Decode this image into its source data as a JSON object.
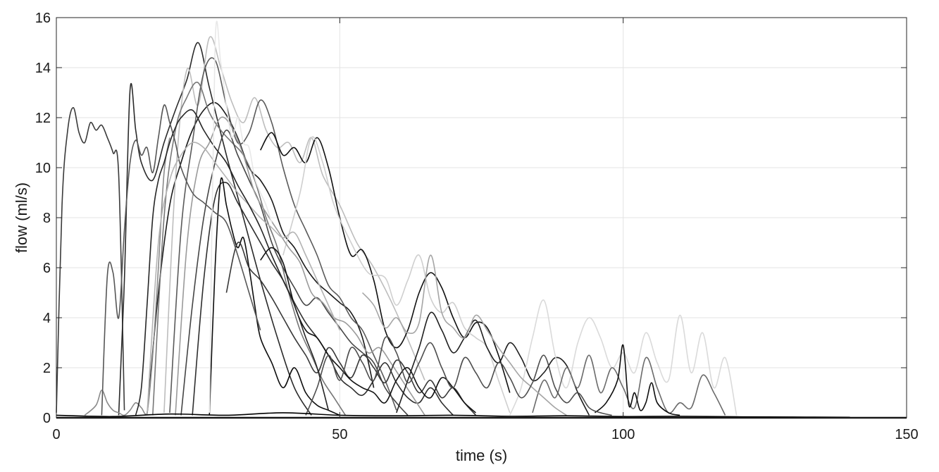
{
  "chart_data": {
    "type": "line",
    "title": "",
    "xlabel": "time (s)",
    "ylabel": "flow (ml/s)",
    "xlim": [
      0,
      150
    ],
    "ylim": [
      0,
      16
    ],
    "xticks": [
      0,
      50,
      100,
      150
    ],
    "yticks": [
      0,
      2,
      4,
      6,
      8,
      10,
      12,
      14,
      16
    ],
    "grid": true,
    "legend": "none",
    "colors": {
      "axis": "#262626",
      "grid": "#e3e3e3",
      "series_dark": "#0a0a0a",
      "series_light": "#d9d9d9"
    },
    "series_description_note": "",
    "series": [
      {
        "color": "#3a3a3a",
        "x": [
          0,
          1,
          2,
          3,
          4,
          5,
          6,
          7,
          8,
          9,
          10,
          11,
          12
        ],
        "y": [
          0.2,
          8.5,
          11.5,
          12.4,
          11.4,
          11.0,
          11.8,
          11.5,
          11.7,
          11.2,
          10.6,
          9.7,
          0.3
        ]
      },
      {
        "color": "#2a2a2a",
        "x": [
          11,
          12,
          13,
          14,
          15,
          17,
          19,
          21,
          23,
          25,
          27,
          30,
          33,
          36,
          39,
          42,
          45
        ],
        "y": [
          0.1,
          5.5,
          13.1,
          11.5,
          10.2,
          9.5,
          11.0,
          12.3,
          13.5,
          15.0,
          13.2,
          10.5,
          8.0,
          5.5,
          3.2,
          1.2,
          0.1
        ]
      },
      {
        "color": "#1a1a1a",
        "x": [
          16,
          18,
          20,
          22,
          24,
          26,
          28,
          30,
          32,
          34,
          36,
          38,
          40,
          42,
          44,
          46,
          48,
          50,
          52,
          54,
          56
        ],
        "y": [
          0.1,
          5.0,
          8.5,
          10.2,
          11.5,
          12.3,
          12.6,
          12.1,
          11.2,
          10.0,
          9.5,
          8.7,
          7.4,
          6.8,
          6.0,
          5.4,
          5.0,
          4.6,
          4.2,
          3.2,
          1.2
        ]
      },
      {
        "color": "#bdbdbd",
        "x": [
          19,
          21,
          23,
          25,
          27,
          29,
          31,
          33,
          35,
          37,
          39,
          41,
          43,
          45,
          47,
          50,
          53,
          56,
          60,
          65
        ],
        "y": [
          0.2,
          9.5,
          13.9,
          12.5,
          15.2,
          14.0,
          12.6,
          11.8,
          12.8,
          11.5,
          10.8,
          11.0,
          10.2,
          11.2,
          9.7,
          8.5,
          7.0,
          6.0,
          4.2,
          1.5
        ]
      },
      {
        "color": "#5a5a5a",
        "x": [
          20,
          22,
          24,
          26,
          28,
          30,
          32,
          34,
          36,
          38,
          40,
          42,
          44,
          46,
          48,
          50,
          52,
          54,
          56,
          58,
          60
        ],
        "y": [
          0.2,
          7.5,
          11.0,
          13.8,
          14.3,
          12.5,
          11.0,
          11.4,
          12.7,
          11.8,
          10.0,
          8.5,
          7.5,
          6.5,
          5.3,
          4.8,
          4.0,
          3.5,
          2.5,
          1.5,
          0.3
        ]
      },
      {
        "color": "#111111",
        "x": [
          36,
          38,
          40,
          42,
          44,
          46,
          48,
          50,
          52,
          54,
          56,
          58,
          60,
          62,
          64,
          66,
          68,
          70,
          72,
          74,
          76,
          78,
          80
        ],
        "y": [
          10.7,
          11.4,
          10.5,
          10.8,
          10.2,
          11.2,
          10.0,
          8.0,
          6.5,
          6.7,
          5.5,
          3.5,
          2.8,
          3.5,
          5.0,
          5.8,
          5.2,
          4.0,
          3.2,
          3.8,
          3.6,
          2.5,
          1.0
        ]
      },
      {
        "color": "#cfcfcf",
        "x": [
          40,
          43,
          45,
          47,
          49,
          52,
          55,
          58,
          60,
          62,
          64,
          66,
          68,
          70,
          72,
          74,
          76,
          78,
          80
        ],
        "y": [
          6.5,
          9.0,
          11.2,
          10.2,
          8.5,
          7.0,
          5.8,
          5.6,
          4.5,
          5.5,
          6.5,
          4.8,
          4.2,
          4.6,
          3.6,
          3.2,
          2.8,
          1.5,
          0.2
        ]
      },
      {
        "color": "#2f2f2f",
        "x": [
          24,
          26,
          28,
          30,
          32,
          34,
          36,
          38,
          40,
          42,
          44,
          46,
          48,
          50,
          52,
          54,
          56,
          58,
          60,
          62,
          64,
          66,
          68,
          70
        ],
        "y": [
          0.1,
          5.5,
          8.8,
          9.4,
          8.6,
          7.8,
          7.0,
          6.2,
          5.5,
          4.6,
          3.8,
          3.2,
          2.5,
          1.6,
          1.2,
          0.9,
          1.5,
          2.2,
          1.4,
          0.8,
          0.6,
          1.2,
          0.6,
          0.1
        ]
      },
      {
        "color": "#777777",
        "x": [
          17,
          19,
          21,
          23,
          25,
          27,
          29,
          31,
          33,
          35,
          37,
          39,
          41,
          43,
          45,
          47,
          49,
          51
        ],
        "y": [
          0.1,
          8.0,
          11.5,
          12.8,
          13.4,
          12.2,
          11.5,
          11.0,
          10.5,
          9.5,
          8.0,
          6.8,
          5.0,
          3.5,
          2.5,
          1.5,
          0.8,
          0.1
        ]
      },
      {
        "color": "#0d0d0d",
        "x": [
          27,
          28,
          29,
          30,
          31,
          32,
          33,
          34,
          35,
          36,
          38,
          40,
          42,
          44,
          46,
          48,
          50
        ],
        "y": [
          0.1,
          6.0,
          9.5,
          8.5,
          7.5,
          6.8,
          7.2,
          6.0,
          4.5,
          3.2,
          2.2,
          1.2,
          2.0,
          1.0,
          0.5,
          0.3,
          0.1
        ]
      },
      {
        "color": "#454545",
        "x": [
          22,
          24,
          26,
          28,
          30,
          32,
          34,
          36,
          38,
          40,
          42,
          44,
          46,
          48,
          50,
          52,
          54,
          56,
          58,
          60,
          62
        ],
        "y": [
          0.1,
          4.5,
          8.0,
          10.2,
          11.5,
          10.5,
          9.5,
          8.5,
          7.0,
          6.0,
          5.2,
          4.5,
          4.8,
          4.2,
          3.6,
          3.0,
          2.6,
          2.2,
          1.2,
          0.6,
          0.1
        ]
      },
      {
        "color": "#9a9a9a",
        "x": [
          21,
          23,
          25,
          27,
          29,
          31,
          33,
          35,
          37,
          39,
          41,
          43,
          45,
          47,
          49,
          51,
          53,
          55,
          57,
          59,
          61,
          63,
          65
        ],
        "y": [
          0.1,
          6.8,
          10.0,
          11.0,
          12.0,
          11.6,
          10.5,
          9.0,
          8.2,
          7.5,
          6.8,
          6.2,
          5.0,
          4.6,
          4.0,
          3.8,
          3.3,
          2.6,
          2.8,
          2.2,
          1.5,
          0.8,
          0.1
        ]
      },
      {
        "color": "#1f1f1f",
        "x": [
          60,
          62,
          64,
          66,
          68,
          70,
          72,
          74,
          76,
          78,
          80,
          82,
          84,
          86,
          88,
          90,
          92,
          94
        ],
        "y": [
          0.2,
          1.5,
          2.8,
          4.2,
          3.5,
          2.6,
          3.2,
          3.9,
          2.8,
          2.2,
          3.0,
          2.4,
          1.5,
          1.8,
          2.4,
          2.1,
          1.0,
          0.1
        ]
      },
      {
        "color": "#dadada",
        "x": [
          80,
          82,
          84,
          86,
          88,
          90,
          92,
          94,
          96,
          98,
          100,
          102,
          104,
          106,
          108,
          110,
          112,
          114,
          116,
          118,
          120
        ],
        "y": [
          0.1,
          1.2,
          3.2,
          4.7,
          2.5,
          1.2,
          3.0,
          4.0,
          3.2,
          2.0,
          2.6,
          1.8,
          3.4,
          2.2,
          1.5,
          4.1,
          1.8,
          3.4,
          1.2,
          2.4,
          0.1
        ]
      },
      {
        "color": "#6b6b6b",
        "x": [
          84,
          86,
          88,
          90,
          92,
          94,
          96,
          98,
          100,
          102,
          104,
          106,
          108,
          110,
          112,
          114,
          116,
          118
        ],
        "y": [
          0.2,
          1.5,
          0.8,
          2.0,
          1.2,
          2.5,
          1.0,
          2.0,
          1.2,
          0.4,
          2.4,
          1.2,
          0.2,
          0.6,
          0.4,
          1.7,
          1.0,
          0.1
        ]
      },
      {
        "color": "#0f0f0f",
        "x": [
          95,
          97,
          99,
          100,
          101,
          102,
          103,
          104,
          105,
          106,
          108,
          110
        ],
        "y": [
          0.2,
          0.6,
          1.5,
          2.9,
          0.5,
          1.0,
          0.3,
          0.6,
          1.4,
          0.6,
          0.2,
          0.1
        ]
      },
      {
        "color": "#383838",
        "x": [
          30,
          32,
          34,
          36,
          38,
          40,
          42,
          44,
          46,
          48,
          50,
          52,
          54,
          56,
          58,
          60,
          62,
          64,
          66,
          68,
          70,
          72,
          74
        ],
        "y": [
          5.0,
          7.0,
          6.0,
          5.5,
          4.8,
          4.0,
          3.2,
          2.5,
          1.8,
          2.8,
          2.2,
          1.6,
          2.5,
          2.0,
          1.4,
          2.3,
          1.8,
          1.0,
          1.5,
          0.8,
          1.2,
          0.6,
          0.1
        ]
      },
      {
        "color": "#8a8a8a",
        "x": [
          5,
          7,
          8,
          9,
          10,
          11,
          12,
          13,
          14,
          15,
          16,
          17,
          18,
          19,
          20
        ],
        "y": [
          0.1,
          0.5,
          1.1,
          0.6,
          0.3,
          0.2,
          0.1,
          0.3,
          0.6,
          0.4,
          0.2,
          2.5,
          6.0,
          9.8,
          11.2
        ]
      },
      {
        "color": "#565656",
        "x": [
          8,
          9,
          10,
          11,
          12,
          13,
          14,
          15,
          16,
          17,
          18,
          19,
          20,
          21,
          22,
          24,
          26,
          28,
          30,
          32,
          34,
          36
        ],
        "y": [
          0.1,
          5.7,
          5.8,
          4.0,
          7.5,
          10.2,
          11.1,
          10.5,
          10.8,
          9.8,
          11.2,
          12.5,
          11.8,
          11.0,
          10.0,
          9.0,
          8.6,
          8.2,
          7.8,
          6.5,
          5.0,
          3.5
        ]
      },
      {
        "color": "#121212",
        "x": [
          36,
          38,
          40,
          42,
          44,
          46,
          48,
          50,
          52,
          54,
          56,
          58,
          60,
          62,
          64,
          66,
          68,
          70,
          72,
          74
        ],
        "y": [
          6.3,
          6.8,
          6.2,
          4.5,
          3.5,
          3.2,
          2.5,
          2.0,
          1.5,
          1.2,
          1.0,
          0.6,
          1.5,
          2.0,
          1.2,
          0.8,
          1.6,
          1.2,
          0.6,
          0.2
        ]
      },
      {
        "color": "#a5a5a5",
        "x": [
          54,
          56,
          58,
          60,
          62,
          64,
          66,
          68,
          70,
          72,
          74,
          76,
          78,
          80,
          82,
          84,
          86,
          88,
          90
        ],
        "y": [
          5.0,
          4.5,
          3.6,
          4.0,
          3.4,
          3.8,
          6.5,
          4.2,
          3.6,
          3.2,
          4.1,
          3.5,
          2.8,
          2.2,
          1.6,
          1.2,
          0.8,
          0.4,
          0.1
        ]
      },
      {
        "color": "#4d4d4d",
        "x": [
          44,
          46,
          48,
          50,
          52,
          54,
          56,
          58,
          60,
          62,
          64,
          66,
          68,
          70,
          72,
          74,
          76,
          78,
          80,
          82,
          84,
          86,
          88,
          90,
          92,
          94,
          96,
          98
        ],
        "y": [
          0.1,
          1.2,
          2.5,
          1.5,
          2.8,
          2.2,
          1.5,
          3.2,
          2.6,
          1.4,
          2.2,
          3.0,
          2.0,
          1.2,
          2.4,
          1.8,
          1.2,
          2.2,
          1.6,
          0.8,
          1.4,
          2.5,
          1.2,
          0.6,
          1.0,
          0.4,
          0.2,
          0.1
        ]
      },
      {
        "color": "#b3b3b3",
        "x": [
          16,
          18,
          20,
          22,
          24,
          26,
          28,
          30,
          32,
          34,
          36,
          38,
          40,
          42,
          44,
          46,
          48,
          50
        ],
        "y": [
          0.1,
          7.0,
          9.5,
          10.5,
          11.0,
          10.8,
          10.2,
          9.6,
          9.0,
          8.5,
          8.0,
          7.6,
          7.2,
          7.4,
          6.5,
          5.5,
          4.5,
          3.5
        ]
      },
      {
        "color": "#262626",
        "x": [
          14,
          15,
          16,
          17,
          18,
          19,
          20,
          21,
          22,
          24,
          26,
          28,
          30,
          32,
          34,
          36,
          38,
          40,
          42,
          44,
          46,
          48
        ],
        "y": [
          0.1,
          1.2,
          4.5,
          8.0,
          9.5,
          10.2,
          11.0,
          11.6,
          12.0,
          12.3,
          11.5,
          10.8,
          10.2,
          9.3,
          8.5,
          7.6,
          6.5,
          5.5,
          4.5,
          3.2,
          2.0,
          0.3
        ]
      },
      {
        "color": "#e8e8e8",
        "x": [
          27,
          28,
          29,
          30,
          31,
          32,
          33,
          34,
          35,
          36,
          37,
          38
        ],
        "y": [
          0.2,
          14.9,
          14.2,
          12.5,
          11.2,
          12.0,
          11.0,
          10.8,
          9.6,
          9.0,
          8.5,
          7.8
        ]
      },
      {
        "color": "#000000",
        "x": [
          0,
          10,
          20,
          30,
          40,
          50,
          60,
          70,
          80,
          90,
          100,
          110,
          120,
          130,
          140
        ],
        "y": [
          0.1,
          0.05,
          0.15,
          0.1,
          0.2,
          0.1,
          0.08,
          0.1,
          0.06,
          0.08,
          0.05,
          0.06,
          0.04,
          0.03,
          0.02
        ]
      }
    ]
  }
}
